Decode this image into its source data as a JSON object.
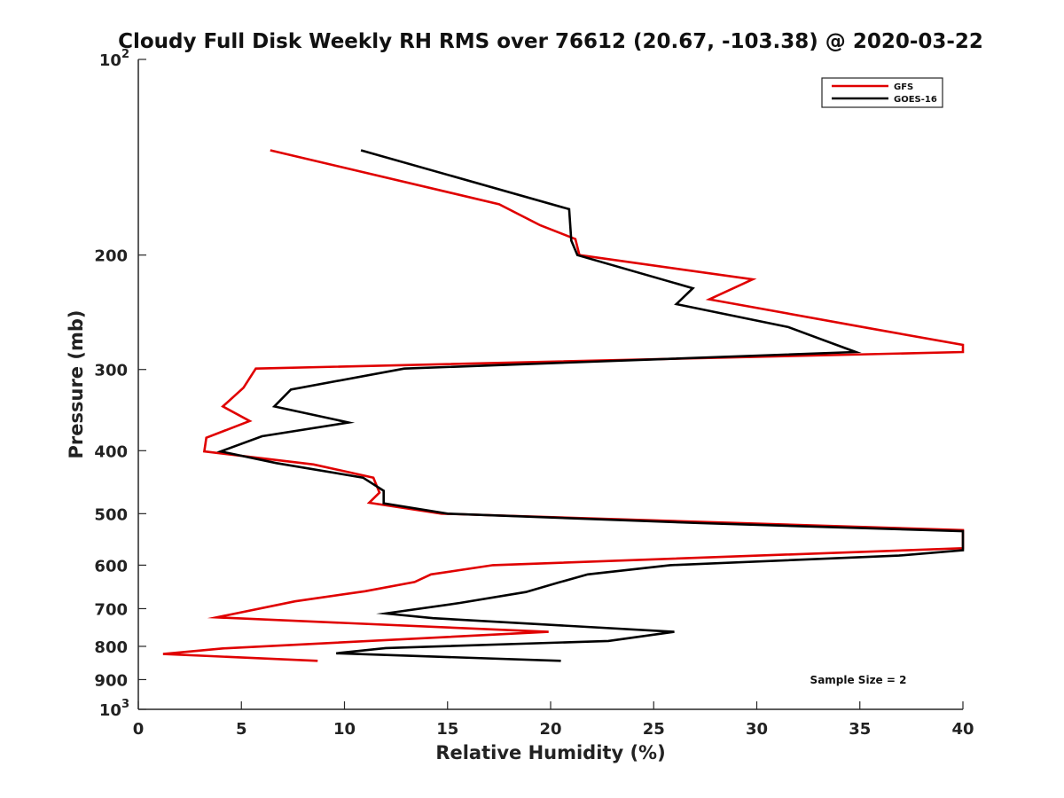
{
  "chart_data": {
    "type": "line",
    "title": "Cloudy Full Disk Weekly RH RMS over 76612 (20.67, -103.38) @ 2020-03-22",
    "xlabel": "Relative Humidity (%)",
    "ylabel": "Pressure (mb)",
    "xlim": [
      0,
      40
    ],
    "ylim": [
      100,
      1000
    ],
    "yscale": "log",
    "yreversed": true,
    "xticks": [
      0,
      5,
      10,
      15,
      20,
      25,
      30,
      35,
      40
    ],
    "yticks": [
      {
        "value": 100,
        "base": "10",
        "exp": "2"
      },
      {
        "value": 200,
        "label": "200"
      },
      {
        "value": 300,
        "label": "300"
      },
      {
        "value": 400,
        "label": "400"
      },
      {
        "value": 500,
        "label": "500"
      },
      {
        "value": 600,
        "label": "600"
      },
      {
        "value": 700,
        "label": "700"
      },
      {
        "value": 800,
        "label": "800"
      },
      {
        "value": 900,
        "label": "900"
      },
      {
        "value": 1000,
        "base": "10",
        "exp": "3"
      }
    ],
    "legend_position": "top-right",
    "annotation": "Sample Size = 2",
    "series": [
      {
        "name": "GFS",
        "color": "#e00000",
        "points": [
          [
            6.4,
            138
          ],
          [
            17.5,
            167
          ],
          [
            19.5,
            180
          ],
          [
            21.2,
            189
          ],
          [
            21.4,
            200
          ],
          [
            29.8,
            218
          ],
          [
            27.7,
            234
          ],
          [
            35.7,
            260
          ],
          [
            40,
            275
          ],
          [
            40,
            282
          ],
          [
            5.7,
            299
          ],
          [
            5.1,
            320
          ],
          [
            4.1,
            342
          ],
          [
            5.4,
            360
          ],
          [
            3.3,
            382
          ],
          [
            3.2,
            401
          ],
          [
            8.5,
            420
          ],
          [
            11.4,
            440
          ],
          [
            11.7,
            464
          ],
          [
            11.2,
            481
          ],
          [
            14.7,
            500
          ],
          [
            40,
            530
          ],
          [
            40,
            565
          ],
          [
            17.2,
            600
          ],
          [
            14.2,
            620
          ],
          [
            13.4,
            637
          ],
          [
            11,
            658
          ],
          [
            7.6,
            682
          ],
          [
            3.8,
            722
          ],
          [
            19.9,
            760
          ],
          [
            4.1,
            806
          ],
          [
            1.2,
            822
          ],
          [
            8.7,
            842
          ]
        ]
      },
      {
        "name": "GOES-16",
        "color": "#000000",
        "points": [
          [
            10.8,
            138
          ],
          [
            20.9,
            170
          ],
          [
            21.0,
            190
          ],
          [
            21.3,
            200
          ],
          [
            26.9,
            225
          ],
          [
            26.1,
            238
          ],
          [
            31.5,
            258
          ],
          [
            34.8,
            282
          ],
          [
            12.9,
            299
          ],
          [
            7.4,
            322
          ],
          [
            6.6,
            342
          ],
          [
            10.2,
            362
          ],
          [
            6.0,
            380
          ],
          [
            4.0,
            401
          ],
          [
            6.7,
            418
          ],
          [
            10.9,
            440
          ],
          [
            11.9,
            461
          ],
          [
            11.9,
            482
          ],
          [
            15.0,
            500
          ],
          [
            27.3,
            517
          ],
          [
            40,
            532
          ],
          [
            40,
            569
          ],
          [
            36.9,
            580
          ],
          [
            25.8,
            600
          ],
          [
            21.8,
            620
          ],
          [
            20.4,
            638
          ],
          [
            18.8,
            660
          ],
          [
            15.6,
            686
          ],
          [
            12.0,
            712
          ],
          [
            14.3,
            724
          ],
          [
            26.0,
            760
          ],
          [
            22.8,
            785
          ],
          [
            12.0,
            805
          ],
          [
            9.6,
            820
          ],
          [
            20.5,
            842
          ]
        ]
      }
    ]
  }
}
